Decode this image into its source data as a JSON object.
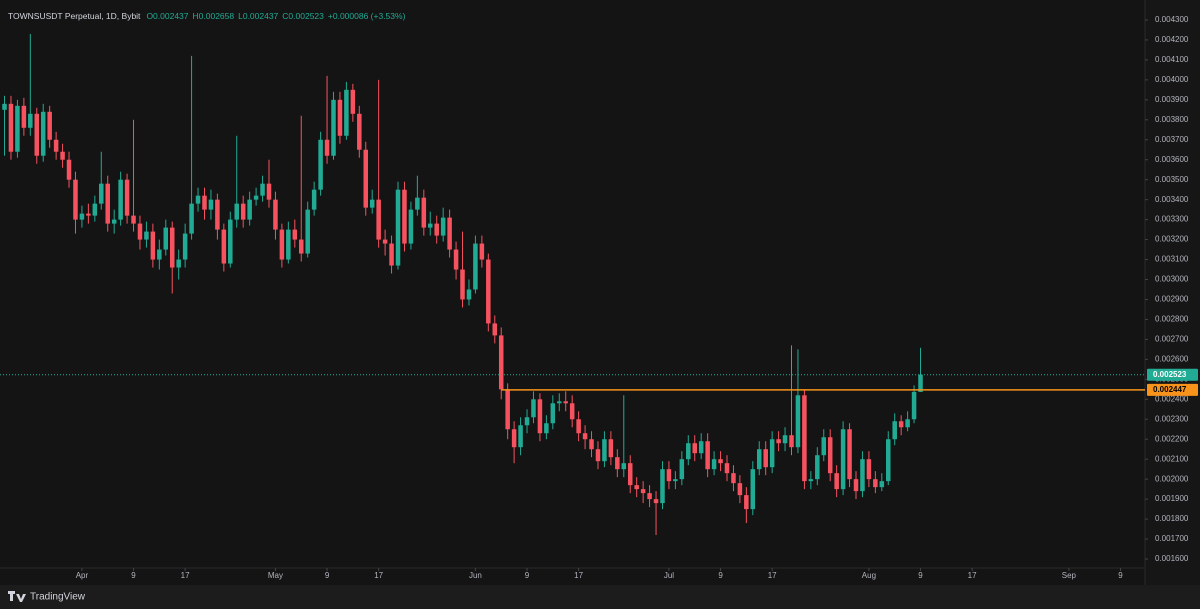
{
  "chart_data": {
    "type": "candlestick",
    "title": "TOWNSUSDT Perpetual, 1D, Bybit",
    "ohlc_labels": [
      "O0.002437",
      "H0.002658",
      "L0.002437",
      "C0.002523",
      "+0.000086 (+3.53%)"
    ],
    "up_color": "#22ab94",
    "down_color": "#f7525f",
    "grid": false,
    "open": [
      0.00385,
      0.00388,
      0.00364,
      0.00387,
      0.00376,
      0.00383,
      0.00362,
      0.00384,
      0.0037,
      0.00364,
      0.0036,
      0.0035,
      0.0033,
      0.00333,
      0.00332,
      0.00338,
      0.00348,
      0.00328,
      0.0033,
      0.0035,
      0.00332,
      0.00328,
      0.0032,
      0.00324,
      0.0031,
      0.00315,
      0.00326,
      0.00306,
      0.0031,
      0.00323,
      0.00338,
      0.00342,
      0.00335,
      0.0034,
      0.00325,
      0.00308,
      0.0033,
      0.00338,
      0.0033,
      0.0034,
      0.00342,
      0.00348,
      0.0034,
      0.00325,
      0.0031,
      0.00325,
      0.0032,
      0.00313,
      0.00335,
      0.00345,
      0.0037,
      0.00362,
      0.0039,
      0.00372,
      0.00395,
      0.00383,
      0.00365,
      0.00336,
      0.0034,
      0.0032,
      0.00318,
      0.00307,
      0.00345,
      0.00318,
      0.00335,
      0.00341,
      0.00326,
      0.00328,
      0.00322,
      0.00331,
      0.00315,
      0.00305,
      0.0029,
      0.00295,
      0.00318,
      0.0031,
      0.00278,
      0.00272,
      0.00245,
      0.00225,
      0.00216,
      0.00227,
      0.00231,
      0.0024,
      0.00223,
      0.00228,
      0.00238,
      0.00239,
      0.00238,
      0.0023,
      0.00223,
      0.0022,
      0.00215,
      0.00209,
      0.0022,
      0.00211,
      0.00205,
      0.00208,
      0.00197,
      0.00195,
      0.00193,
      0.0019,
      0.00188,
      0.00205,
      0.00199,
      0.002,
      0.0021,
      0.00218,
      0.00213,
      0.00219,
      0.00205,
      0.0021,
      0.00208,
      0.00203,
      0.00198,
      0.00192,
      0.00185,
      0.00205,
      0.00215,
      0.00206,
      0.0022,
      0.00218,
      0.00222,
      0.00216,
      0.00242,
      0.00199,
      0.002,
      0.00212,
      0.00221,
      0.00203,
      0.00195,
      0.00225,
      0.002,
      0.00194,
      0.0021,
      0.002,
      0.00196,
      0.00199,
      0.0022,
      0.00229,
      0.00226,
      0.0023,
      0.002437
    ],
    "high": [
      0.00392,
      0.00392,
      0.0039,
      0.00391,
      0.00423,
      0.00386,
      0.00388,
      0.00387,
      0.00374,
      0.00368,
      0.00364,
      0.00354,
      0.00337,
      0.00338,
      0.00342,
      0.00364,
      0.00352,
      0.00335,
      0.00354,
      0.00353,
      0.0038,
      0.00332,
      0.00329,
      0.00328,
      0.0032,
      0.0033,
      0.00329,
      0.00315,
      0.00328,
      0.00412,
      0.00346,
      0.00346,
      0.00345,
      0.00343,
      0.00328,
      0.00334,
      0.00372,
      0.00342,
      0.00344,
      0.00346,
      0.00352,
      0.0036,
      0.00344,
      0.00328,
      0.00329,
      0.0033,
      0.00382,
      0.00339,
      0.00349,
      0.00374,
      0.00402,
      0.00394,
      0.00394,
      0.00399,
      0.00398,
      0.00387,
      0.00369,
      0.00345,
      0.004,
      0.00325,
      0.00322,
      0.00349,
      0.00349,
      0.00339,
      0.00352,
      0.00345,
      0.00334,
      0.00332,
      0.00336,
      0.00335,
      0.00319,
      0.00324,
      0.003,
      0.00322,
      0.00322,
      0.00313,
      0.00282,
      0.00276,
      0.00248,
      0.00229,
      0.00231,
      0.00235,
      0.00244,
      0.00243,
      0.00232,
      0.00242,
      0.00243,
      0.00244,
      0.00242,
      0.00234,
      0.00227,
      0.00224,
      0.00219,
      0.00224,
      0.00224,
      0.00215,
      0.00242,
      0.00212,
      0.00201,
      0.00199,
      0.00197,
      0.00194,
      0.00209,
      0.00209,
      0.00204,
      0.00214,
      0.00222,
      0.00222,
      0.00223,
      0.00223,
      0.00214,
      0.00214,
      0.00212,
      0.00207,
      0.00202,
      0.00196,
      0.00209,
      0.00219,
      0.00219,
      0.00224,
      0.00224,
      0.00226,
      0.00267,
      0.00265,
      0.00245,
      0.00204,
      0.00216,
      0.00225,
      0.00225,
      0.00207,
      0.00229,
      0.00228,
      0.00204,
      0.00214,
      0.00214,
      0.00204,
      0.00203,
      0.00224,
      0.00233,
      0.00232,
      0.00234,
      0.00247,
      0.002658
    ],
    "low": [
      0.00362,
      0.0036,
      0.00361,
      0.00372,
      0.00372,
      0.00358,
      0.00359,
      0.00366,
      0.0036,
      0.00356,
      0.00346,
      0.00323,
      0.00326,
      0.00328,
      0.00329,
      0.00335,
      0.00324,
      0.00323,
      0.00327,
      0.00328,
      0.00324,
      0.00315,
      0.00316,
      0.00306,
      0.00305,
      0.00312,
      0.00293,
      0.003,
      0.00306,
      0.0032,
      0.00334,
      0.0033,
      0.0033,
      0.0032,
      0.00304,
      0.00306,
      0.00326,
      0.00326,
      0.00327,
      0.00337,
      0.00339,
      0.00336,
      0.0032,
      0.00306,
      0.00308,
      0.00316,
      0.00309,
      0.00311,
      0.00332,
      0.00342,
      0.00358,
      0.0036,
      0.00368,
      0.0037,
      0.00379,
      0.00361,
      0.00332,
      0.00333,
      0.00316,
      0.00312,
      0.00303,
      0.00305,
      0.00314,
      0.00315,
      0.00332,
      0.00322,
      0.00322,
      0.00318,
      0.00319,
      0.00311,
      0.003,
      0.00286,
      0.00287,
      0.00293,
      0.00306,
      0.00274,
      0.00268,
      0.0024,
      0.0022,
      0.00208,
      0.00212,
      0.00223,
      0.00228,
      0.00219,
      0.0022,
      0.00225,
      0.00234,
      0.00234,
      0.00226,
      0.00219,
      0.00215,
      0.00211,
      0.00205,
      0.00206,
      0.00207,
      0.00201,
      0.00201,
      0.00193,
      0.00191,
      0.00188,
      0.00186,
      0.00172,
      0.00185,
      0.00195,
      0.00195,
      0.00197,
      0.00207,
      0.00209,
      0.0021,
      0.00201,
      0.00202,
      0.00204,
      0.00199,
      0.00194,
      0.00188,
      0.00178,
      0.00182,
      0.00202,
      0.00202,
      0.00203,
      0.00214,
      0.00214,
      0.00212,
      0.00213,
      0.00195,
      0.00195,
      0.00197,
      0.00209,
      0.00199,
      0.00191,
      0.00192,
      0.00196,
      0.0019,
      0.00191,
      0.00196,
      0.00193,
      0.00194,
      0.00197,
      0.00217,
      0.00222,
      0.00224,
      0.00228,
      0.002437
    ],
    "close": [
      0.00388,
      0.00364,
      0.00387,
      0.00376,
      0.00383,
      0.00362,
      0.00384,
      0.0037,
      0.00364,
      0.0036,
      0.0035,
      0.0033,
      0.00333,
      0.00332,
      0.00338,
      0.00348,
      0.00328,
      0.0033,
      0.0035,
      0.00332,
      0.00328,
      0.0032,
      0.00324,
      0.0031,
      0.00315,
      0.00326,
      0.00306,
      0.0031,
      0.00323,
      0.00338,
      0.00342,
      0.00335,
      0.0034,
      0.00325,
      0.00308,
      0.0033,
      0.00338,
      0.0033,
      0.0034,
      0.00342,
      0.00348,
      0.0034,
      0.00325,
      0.0031,
      0.00325,
      0.0032,
      0.00313,
      0.00335,
      0.00345,
      0.0037,
      0.00362,
      0.0039,
      0.00372,
      0.00395,
      0.00383,
      0.00365,
      0.00336,
      0.0034,
      0.0032,
      0.00318,
      0.00307,
      0.00345,
      0.00318,
      0.00335,
      0.00341,
      0.00326,
      0.00328,
      0.00322,
      0.00331,
      0.00315,
      0.00305,
      0.0029,
      0.00295,
      0.00318,
      0.0031,
      0.00278,
      0.00272,
      0.00245,
      0.00225,
      0.00216,
      0.00227,
      0.00231,
      0.0024,
      0.00223,
      0.00228,
      0.00238,
      0.00239,
      0.00238,
      0.0023,
      0.00223,
      0.0022,
      0.00215,
      0.00209,
      0.0022,
      0.00211,
      0.00205,
      0.00208,
      0.00197,
      0.00195,
      0.00193,
      0.0019,
      0.00188,
      0.00205,
      0.00199,
      0.002,
      0.0021,
      0.00218,
      0.00213,
      0.00219,
      0.00205,
      0.0021,
      0.00208,
      0.00203,
      0.00198,
      0.00192,
      0.00185,
      0.00205,
      0.00215,
      0.00206,
      0.0022,
      0.00218,
      0.00222,
      0.00216,
      0.00242,
      0.00199,
      0.002,
      0.00212,
      0.00221,
      0.00203,
      0.00195,
      0.00225,
      0.002,
      0.00194,
      0.0021,
      0.002,
      0.00196,
      0.00199,
      0.0022,
      0.00229,
      0.00226,
      0.0023,
      0.002437,
      0.002523
    ],
    "xlim": [
      -0.7,
      176.8
    ],
    "xticks": [
      {
        "value": 12,
        "label": "Apr"
      },
      {
        "value": 20,
        "label": "9"
      },
      {
        "value": 28,
        "label": "17"
      },
      {
        "value": 42,
        "label": "May"
      },
      {
        "value": 50,
        "label": "9"
      },
      {
        "value": 58,
        "label": "17"
      },
      {
        "value": 73,
        "label": "Jun"
      },
      {
        "value": 81,
        "label": "9"
      },
      {
        "value": 89,
        "label": "17"
      },
      {
        "value": 103,
        "label": "Jul"
      },
      {
        "value": 111,
        "label": "9"
      },
      {
        "value": 119,
        "label": "17"
      },
      {
        "value": 134,
        "label": "Aug"
      },
      {
        "value": 142,
        "label": "9"
      },
      {
        "value": 150,
        "label": "17"
      },
      {
        "value": 165,
        "label": "Sep"
      },
      {
        "value": 173,
        "label": "9"
      }
    ],
    "ylim": [
      0.001555,
      0.0044
    ],
    "yticks": [
      {
        "value": 0.0043,
        "label": "0.004300"
      },
      {
        "value": 0.0042,
        "label": "0.004200"
      },
      {
        "value": 0.0041,
        "label": "0.004100"
      },
      {
        "value": 0.004,
        "label": "0.004000"
      },
      {
        "value": 0.0039,
        "label": "0.003900"
      },
      {
        "value": 0.0038,
        "label": "0.003800"
      },
      {
        "value": 0.0037,
        "label": "0.003700"
      },
      {
        "value": 0.0036,
        "label": "0.003600"
      },
      {
        "value": 0.0035,
        "label": "0.003500"
      },
      {
        "value": 0.0034,
        "label": "0.003400"
      },
      {
        "value": 0.0033,
        "label": "0.003300"
      },
      {
        "value": 0.0032,
        "label": "0.003200"
      },
      {
        "value": 0.0031,
        "label": "0.003100"
      },
      {
        "value": 0.003,
        "label": "0.003000"
      },
      {
        "value": 0.0029,
        "label": "0.002900"
      },
      {
        "value": 0.0028,
        "label": "0.002800"
      },
      {
        "value": 0.0027,
        "label": "0.002700"
      },
      {
        "value": 0.0026,
        "label": "0.002600"
      },
      {
        "value": 0.0025,
        "label": "0.002500"
      },
      {
        "value": 0.0024,
        "label": "0.002400"
      },
      {
        "value": 0.0023,
        "label": "0.002300"
      },
      {
        "value": 0.0022,
        "label": "0.002200"
      },
      {
        "value": 0.0021,
        "label": "0.002100"
      },
      {
        "value": 0.002,
        "label": "0.002000"
      },
      {
        "value": 0.0019,
        "label": "0.001900"
      },
      {
        "value": 0.0018,
        "label": "0.001800"
      },
      {
        "value": 0.0017,
        "label": "0.001700"
      },
      {
        "value": 0.0016,
        "label": "0.001600"
      }
    ],
    "price_line": {
      "value": 0.002523,
      "label": "0.002523",
      "color": "#22ab94"
    },
    "level_line": {
      "value": 0.002447,
      "label": "0.002447",
      "color": "#f7931a",
      "x_start": 77
    }
  },
  "footer": "TradingView"
}
